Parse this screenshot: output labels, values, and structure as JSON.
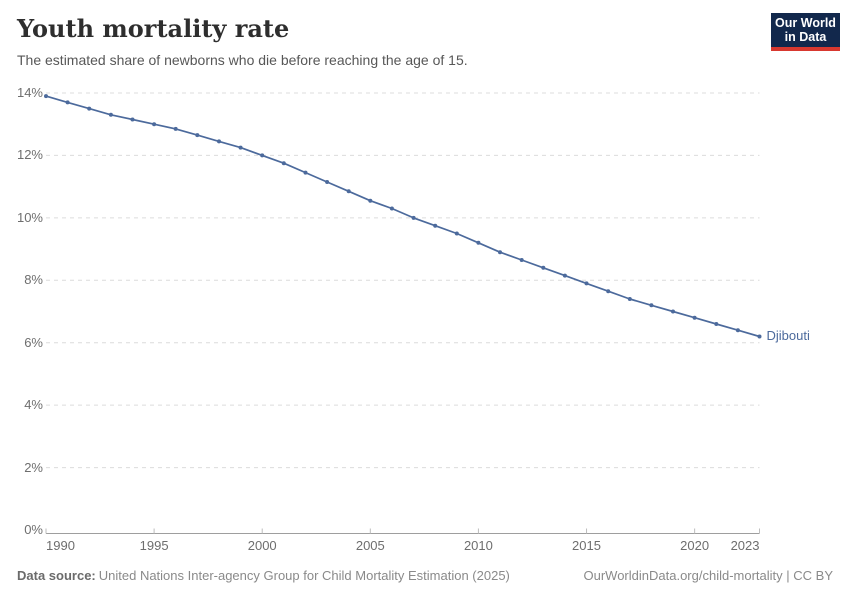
{
  "header": {
    "title": "Youth mortality rate",
    "subtitle": "The estimated share of newborns who die before reaching the age of 15.",
    "logo_line1": "Our World",
    "logo_line2": "in Data"
  },
  "chart_data": {
    "type": "line",
    "title": "Youth mortality rate",
    "subtitle": "The estimated share of newborns who die before reaching the age of 15.",
    "entity_label": "Djibouti",
    "unit": "%",
    "x": [
      1990,
      1991,
      1992,
      1993,
      1994,
      1995,
      1996,
      1997,
      1998,
      1999,
      2000,
      2001,
      2002,
      2003,
      2004,
      2005,
      2006,
      2007,
      2008,
      2009,
      2010,
      2011,
      2012,
      2013,
      2014,
      2015,
      2016,
      2017,
      2018,
      2019,
      2020,
      2021,
      2022,
      2023
    ],
    "series": [
      {
        "name": "Djibouti",
        "values": [
          13.9,
          13.7,
          13.5,
          13.3,
          13.15,
          13.0,
          12.85,
          12.65,
          12.45,
          12.25,
          12.0,
          11.75,
          11.45,
          11.15,
          10.85,
          10.55,
          10.3,
          10.0,
          9.75,
          9.5,
          9.2,
          8.9,
          8.65,
          8.4,
          8.15,
          7.9,
          7.65,
          7.4,
          7.2,
          7.0,
          6.8,
          6.6,
          6.4,
          6.2
        ]
      }
    ],
    "x_ticks": [
      1990,
      1995,
      2000,
      2005,
      2010,
      2015,
      2020,
      2023
    ],
    "y_ticks": [
      0,
      2,
      4,
      6,
      8,
      10,
      12,
      14
    ],
    "y_tick_suffix": "%",
    "xlim": [
      1990,
      2023
    ],
    "ylim": [
      0,
      14
    ],
    "grid": "dashed horizontal",
    "legend_position": "inline right of line end",
    "line_color": "#4C6A9C"
  },
  "footer": {
    "source_label": "Data source:",
    "source_text": "United Nations Inter-agency Group for Child Mortality Estimation (2025)",
    "right_text": "OurWorldinData.org/child-mortality | CC BY"
  },
  "colors": {
    "line": "#4C6A9C",
    "title": "#2e2e2e",
    "subtitle": "#575757",
    "tick_label": "#6e6e6e",
    "gridline": "#dcdcdc",
    "axis_line": "#9e9e9e",
    "footer_text": "#8a8a8a",
    "logo_background": "#12284C",
    "logo_red_bar": "#D8382F"
  }
}
